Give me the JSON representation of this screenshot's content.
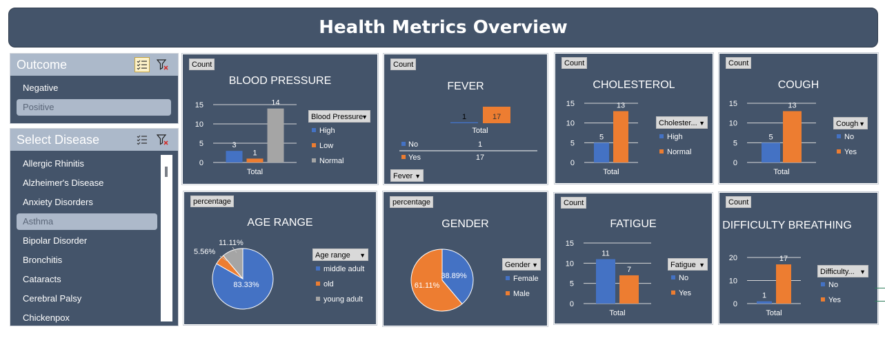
{
  "header": {
    "title": "Health Metrics Overview"
  },
  "colors": {
    "blue": "#4472c4",
    "orange": "#ed7d31",
    "gray": "#a5a5a5",
    "panel": "#44546a"
  },
  "outcome_slicer": {
    "title": "Outcome",
    "items": [
      {
        "label": "Negative",
        "selected": false
      },
      {
        "label": "Positive",
        "selected": true
      }
    ]
  },
  "disease_slicer": {
    "title": "Select Disease",
    "items": [
      {
        "label": "Allergic Rhinitis",
        "selected": false
      },
      {
        "label": "Alzheimer's Disease",
        "selected": false
      },
      {
        "label": "Anxiety Disorders",
        "selected": false
      },
      {
        "label": "Asthma",
        "selected": true
      },
      {
        "label": "Bipolar Disorder",
        "selected": false
      },
      {
        "label": "Bronchitis",
        "selected": false
      },
      {
        "label": "Cataracts",
        "selected": false
      },
      {
        "label": "Cerebral Palsy",
        "selected": false
      },
      {
        "label": "Chickenpox",
        "selected": false
      }
    ]
  },
  "chart_data": [
    {
      "id": "blood-pressure",
      "type": "bar",
      "title": "BLOOD PRESSURE",
      "field": "Count",
      "categories": [
        "Total"
      ],
      "ylim": [
        0,
        15
      ],
      "yticks": [
        0,
        5,
        10,
        15
      ],
      "legend_title": "Blood Pressure",
      "series": [
        {
          "name": "High",
          "values": [
            3
          ],
          "color": "#4472c4"
        },
        {
          "name": "Low",
          "values": [
            1
          ],
          "color": "#ed7d31"
        },
        {
          "name": "Normal",
          "values": [
            14
          ],
          "color": "#a5a5a5"
        }
      ]
    },
    {
      "id": "fever",
      "type": "bar",
      "title": "FEVER",
      "field": "Count",
      "categories": [
        "Total"
      ],
      "legend_title": "Fever",
      "series": [
        {
          "name": "No",
          "values": [
            1
          ],
          "color": "#4472c4"
        },
        {
          "name": "Yes",
          "values": [
            17
          ],
          "color": "#ed7d31"
        }
      ]
    },
    {
      "id": "cholesterol",
      "type": "bar",
      "title": "CHOLESTEROL",
      "field": "Count",
      "categories": [
        "Total"
      ],
      "ylim": [
        0,
        15
      ],
      "yticks": [
        0,
        5,
        10,
        15
      ],
      "legend_title": "Cholester...",
      "series": [
        {
          "name": "High",
          "values": [
            5
          ],
          "color": "#4472c4"
        },
        {
          "name": "Normal",
          "values": [
            13
          ],
          "color": "#ed7d31"
        }
      ]
    },
    {
      "id": "cough",
      "type": "bar",
      "title": "COUGH",
      "field": "Count",
      "categories": [
        "Total"
      ],
      "ylim": [
        0,
        15
      ],
      "yticks": [
        0,
        5,
        10,
        15
      ],
      "legend_title": "Cough",
      "series": [
        {
          "name": "No",
          "values": [
            5
          ],
          "color": "#4472c4"
        },
        {
          "name": "Yes",
          "values": [
            13
          ],
          "color": "#ed7d31"
        }
      ]
    },
    {
      "id": "age-range",
      "type": "pie",
      "title": "AGE RANGE",
      "field": "percentage",
      "legend_title": "Age range",
      "slices": [
        {
          "name": "middle adult",
          "value": 83.33,
          "label": "83.33%",
          "color": "#4472c4"
        },
        {
          "name": "old",
          "value": 5.56,
          "label": "5.56%",
          "color": "#ed7d31"
        },
        {
          "name": "young adult",
          "value": 11.11,
          "label": "11.11%",
          "color": "#a5a5a5"
        }
      ]
    },
    {
      "id": "gender",
      "type": "pie",
      "title": "GENDER",
      "field": "percentage",
      "legend_title": "Gender",
      "slices": [
        {
          "name": "Female",
          "value": 38.89,
          "label": "38.89%",
          "color": "#4472c4"
        },
        {
          "name": "Male",
          "value": 61.11,
          "label": "61.11%",
          "color": "#ed7d31"
        }
      ]
    },
    {
      "id": "fatigue",
      "type": "bar",
      "title": "FATIGUE",
      "field": "Count",
      "categories": [
        "Total"
      ],
      "ylim": [
        0,
        15
      ],
      "yticks": [
        0,
        5,
        10,
        15
      ],
      "legend_title": "Fatigue",
      "series": [
        {
          "name": "No",
          "values": [
            11
          ],
          "color": "#4472c4"
        },
        {
          "name": "Yes",
          "values": [
            7
          ],
          "color": "#ed7d31"
        }
      ]
    },
    {
      "id": "difficulty-breathing",
      "type": "bar",
      "title": "DIFFICULTY BREATHING",
      "field": "Count",
      "categories": [
        "Total"
      ],
      "ylim": [
        0,
        20
      ],
      "yticks": [
        0,
        10,
        20
      ],
      "legend_title": "Difficulty...",
      "series": [
        {
          "name": "No",
          "values": [
            1
          ],
          "color": "#4472c4"
        },
        {
          "name": "Yes",
          "values": [
            17
          ],
          "color": "#ed7d31"
        }
      ]
    }
  ]
}
